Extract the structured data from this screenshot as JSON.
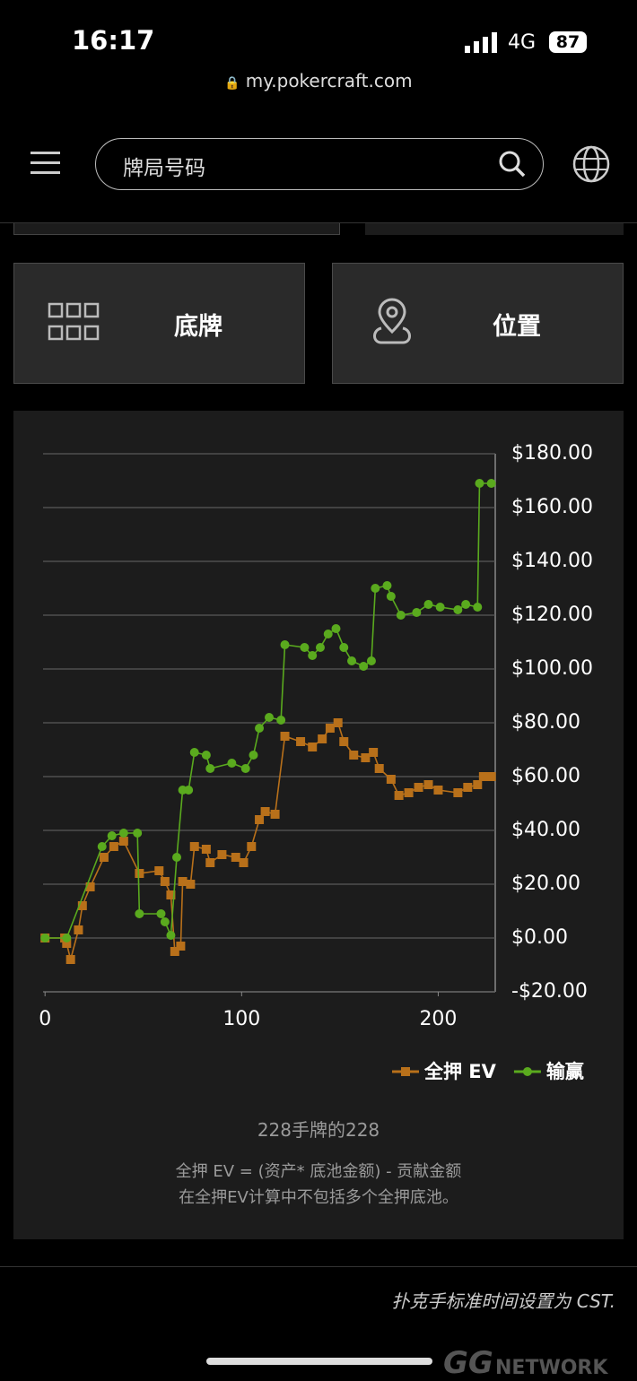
{
  "status_bar": {
    "time": "16:17",
    "network": "4G",
    "battery": "87"
  },
  "browser": {
    "url": "my.pokercraft.com"
  },
  "header": {
    "search_placeholder": "牌局号码"
  },
  "tiles": [
    {
      "label": "底牌"
    },
    {
      "label": "位置"
    }
  ],
  "chart_data": {
    "type": "line",
    "xlim": [
      -1,
      229
    ],
    "xticks": [
      0,
      100,
      200
    ],
    "ylim": [
      -20,
      180
    ],
    "yticks": [
      {
        "value": 180,
        "label": "$180.00"
      },
      {
        "value": 160,
        "label": "$160.00"
      },
      {
        "value": 140,
        "label": "$140.00"
      },
      {
        "value": 120,
        "label": "$120.00"
      },
      {
        "value": 100,
        "label": "$100.00"
      },
      {
        "value": 80,
        "label": "$80.00"
      },
      {
        "value": 60,
        "label": "$60.00"
      },
      {
        "value": 40,
        "label": "$40.00"
      },
      {
        "value": 20,
        "label": "$20.00"
      },
      {
        "value": 0,
        "label": "$0.00"
      },
      {
        "value": -20,
        "label": "-$20.00"
      }
    ],
    "grid": true,
    "series": [
      {
        "name": "全押 EV",
        "color": "#b8701a",
        "marker": "square",
        "x": [
          0,
          10,
          11,
          13,
          17,
          19,
          23,
          30,
          35,
          40,
          48,
          58,
          61,
          64,
          66,
          69,
          70,
          74,
          76,
          82,
          84,
          90,
          97,
          101,
          105,
          109,
          112,
          117,
          122,
          130,
          136,
          141,
          145,
          149,
          152,
          157,
          163,
          167,
          170,
          176,
          180,
          185,
          190,
          195,
          200,
          210,
          215,
          220,
          223,
          227
        ],
        "values": [
          0,
          0,
          -2,
          -8,
          3,
          12,
          19,
          30,
          34,
          36,
          24,
          25,
          21,
          16,
          -5,
          -3,
          21,
          20,
          34,
          33,
          28,
          31,
          30,
          28,
          34,
          44,
          47,
          46,
          75,
          73,
          71,
          74,
          78,
          80,
          73,
          68,
          67,
          69,
          63,
          59,
          53,
          54,
          56,
          57,
          55,
          54,
          56,
          57,
          60,
          60
        ]
      },
      {
        "name": "输赢",
        "color": "#5aaa1e",
        "marker": "circle",
        "x": [
          0,
          11,
          29,
          34,
          40,
          47,
          48,
          59,
          61,
          64,
          67,
          70,
          73,
          76,
          82,
          84,
          95,
          102,
          106,
          109,
          114,
          120,
          122,
          132,
          136,
          140,
          144,
          148,
          152,
          156,
          162,
          166,
          168,
          174,
          176,
          181,
          189,
          195,
          201,
          210,
          214,
          220,
          221,
          227
        ],
        "values": [
          0,
          0,
          34,
          38,
          39,
          39,
          9,
          9,
          6,
          1,
          30,
          55,
          55,
          69,
          68,
          63,
          65,
          63,
          68,
          78,
          82,
          81,
          109,
          108,
          105,
          108,
          113,
          115,
          108,
          103,
          101,
          103,
          130,
          131,
          127,
          120,
          121,
          124,
          123,
          122,
          124,
          123,
          169,
          169
        ]
      }
    ]
  },
  "chart_notes": {
    "hand_count": "228手牌的228",
    "formula": "全押 EV = (资产* 底池金额) - 贡献金额",
    "note": "在全押EV计算中不包括多个全押底池。"
  },
  "footer": {
    "timezone_note": "扑克手标准时间设置为 CST.",
    "logo": "GG",
    "logo_text": "NETWORK"
  }
}
